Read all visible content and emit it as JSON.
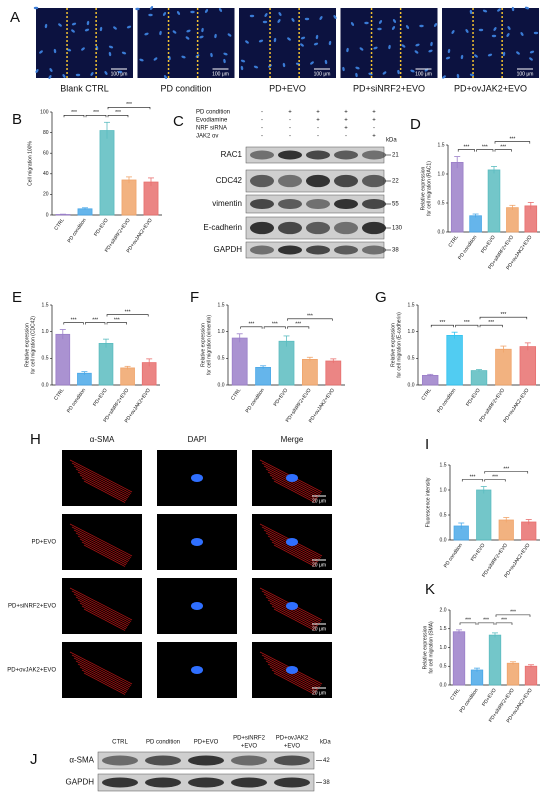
{
  "panel_a": {
    "panel": "A",
    "images": [
      {
        "label": "Blank CTRL",
        "scale_bar": "100 μm"
      },
      {
        "label": "PD condition",
        "scale_bar": "100 μm"
      },
      {
        "label": "PD+EVO",
        "scale_bar": "100 μm"
      },
      {
        "label": "PD+siNRF2+EVO",
        "scale_bar": "100 μm"
      },
      {
        "label": "PD+ovJAK2+EVO",
        "scale_bar": "100 μm"
      }
    ]
  },
  "panel_c": {
    "panel": "C",
    "unit": "kDa",
    "conditions": [
      {
        "name": "PD condition",
        "signs": [
          "-",
          "+",
          "+",
          "+",
          "+"
        ]
      },
      {
        "name": "Evodiamine",
        "signs": [
          "-",
          "-",
          "+",
          "+",
          "+"
        ]
      },
      {
        "name": "NRF siRNA",
        "signs": [
          "-",
          "-",
          "-",
          "+",
          "-"
        ]
      },
      {
        "name": "JAK2 ov",
        "signs": [
          "-",
          "-",
          "-",
          "-",
          "+"
        ]
      }
    ],
    "bands": [
      {
        "name": "RAC1",
        "kda": 21
      },
      {
        "name": "CDC42",
        "kda": 22
      },
      {
        "name": "vimentin",
        "kda": 55
      },
      {
        "name": "E-cadherin",
        "kda": 130
      },
      {
        "name": "GAPDH",
        "kda": 38
      }
    ]
  },
  "panel_h": {
    "panel": "H",
    "columns": [
      "α-SMA",
      "DAPI",
      "Merge"
    ],
    "rows": [
      {
        "scale_bar": "20 μm"
      },
      {
        "label": "PD+EVO",
        "scale_bar": "20 μm"
      },
      {
        "label": "PD+siNRF2+EVO",
        "scale_bar": "20 μm"
      },
      {
        "label": "PD+ovJAK2+EVO",
        "scale_bar": "20 μm"
      }
    ]
  },
  "panel_j": {
    "panel": "J",
    "unit": "kDa",
    "lanes": [
      [
        "CTRL"
      ],
      [
        "PD condition"
      ],
      [
        "PD+EVO"
      ],
      [
        "PD+siNRF2",
        "+EVO"
      ],
      [
        "PD+ovJAK2",
        "+EVO"
      ]
    ],
    "bands": [
      {
        "name": "α-SMA",
        "kda": 42
      },
      {
        "name": "GAPDH",
        "kda": 38
      }
    ]
  },
  "chart_data": [
    {
      "type": "bar",
      "panel": "B",
      "ylabel": [
        "Cell migration 100%"
      ],
      "categories": [
        "CTRL",
        "PD condition",
        "PD+EVO",
        "PD+siNRF2+EVO",
        "PD+ovJAK2+EVO"
      ],
      "values": [
        0.5,
        6,
        82,
        34,
        32
      ],
      "errors": [
        0.3,
        1,
        8,
        3,
        4
      ],
      "colors": [
        "#9b7fc9",
        "#4aa8e8",
        "#5bbcc0",
        "#f0a46a",
        "#e8706f"
      ],
      "ylim": [
        0,
        100
      ],
      "yticks": [
        0,
        20,
        40,
        60,
        80,
        100
      ],
      "significance": [
        {
          "between": [
            "CTRL",
            "PD condition"
          ],
          "label": "***"
        },
        {
          "between": [
            "PD condition",
            "PD+EVO"
          ],
          "label": "***"
        },
        {
          "between": [
            "PD+EVO",
            "PD+siNRF2+EVO"
          ],
          "label": "***"
        },
        {
          "between": [
            "PD+EVO",
            "PD+ovJAK2+EVO"
          ],
          "label": "***"
        }
      ]
    },
    {
      "type": "bar",
      "panel": "D",
      "ylabel": [
        "Relative expression",
        "for cell migration (RAC1)"
      ],
      "categories": [
        "CTRL",
        "PD condition",
        "PD+EVO",
        "PD+siNRF2+EVO",
        "PD+ovJAK2+EVO"
      ],
      "values": [
        1.2,
        0.28,
        1.07,
        0.42,
        0.45
      ],
      "errors": [
        0.1,
        0.03,
        0.06,
        0.04,
        0.06
      ],
      "colors": [
        "#9b7fc9",
        "#4aa8e8",
        "#5bbcc0",
        "#f0a46a",
        "#e8706f"
      ],
      "ylim": [
        0,
        1.5
      ],
      "yticks": [
        {
          "value": 0,
          "label": "0.0"
        },
        {
          "value": 0.5,
          "label": "0.5"
        },
        {
          "value": 1,
          "label": "1.0"
        },
        {
          "value": 1.5,
          "label": "1.5"
        }
      ],
      "significance": [
        {
          "between": [
            "CTRL",
            "PD condition"
          ],
          "label": "***"
        },
        {
          "between": [
            "PD condition",
            "PD+EVO"
          ],
          "label": "***"
        },
        {
          "between": [
            "PD+EVO",
            "PD+siNRF2+EVO"
          ],
          "label": "***"
        },
        {
          "between": [
            "PD+EVO",
            "PD+ovJAK2+EVO"
          ],
          "label": "***"
        }
      ]
    },
    {
      "type": "bar",
      "panel": "E",
      "ylabel": [
        "Relative expression",
        "for cell migration (CDC42)"
      ],
      "categories": [
        "CTRL",
        "PD condition",
        "PD+EVO",
        "PD+siNRF2+EVO",
        "PD+ovJAK2+EVO"
      ],
      "values": [
        0.95,
        0.22,
        0.78,
        0.32,
        0.42
      ],
      "errors": [
        0.09,
        0.03,
        0.08,
        0.03,
        0.07
      ],
      "colors": [
        "#9b7fc9",
        "#4aa8e8",
        "#5bbcc0",
        "#f0a46a",
        "#e8706f"
      ],
      "ylim": [
        0,
        1.5
      ],
      "yticks": [
        {
          "value": 0,
          "label": "0.0"
        },
        {
          "value": 0.5,
          "label": "0.5"
        },
        {
          "value": 1,
          "label": "1.0"
        },
        {
          "value": 1.5,
          "label": "1.5"
        }
      ],
      "significance": [
        {
          "between": [
            "CTRL",
            "PD condition"
          ],
          "label": "***"
        },
        {
          "between": [
            "PD condition",
            "PD+EVO"
          ],
          "label": "***"
        },
        {
          "between": [
            "PD+EVO",
            "PD+siNRF2+EVO"
          ],
          "label": "***"
        },
        {
          "between": [
            "PD+EVO",
            "PD+ovJAK2+EVO"
          ],
          "label": "***"
        }
      ]
    },
    {
      "type": "bar",
      "panel": "F",
      "ylabel": [
        "Relative expression",
        "for cell migration (vimentin)"
      ],
      "categories": [
        "CTRL",
        "PD condition",
        "PD+EVO",
        "PD+siNRF2+EVO",
        "PD+ovJAK2+EVO"
      ],
      "values": [
        0.88,
        0.33,
        0.82,
        0.48,
        0.45
      ],
      "errors": [
        0.08,
        0.03,
        0.1,
        0.04,
        0.04
      ],
      "colors": [
        "#9b7fc9",
        "#4aa8e8",
        "#5bbcc0",
        "#f0a46a",
        "#e8706f"
      ],
      "ylim": [
        0,
        1.5
      ],
      "yticks": [
        {
          "value": 0,
          "label": "0.0"
        },
        {
          "value": 0.5,
          "label": "0.5"
        },
        {
          "value": 1,
          "label": "1.0"
        },
        {
          "value": 1.5,
          "label": "1.5"
        }
      ],
      "significance": [
        {
          "between": [
            "CTRL",
            "PD condition"
          ],
          "label": "***"
        },
        {
          "between": [
            "PD condition",
            "PD+EVO"
          ],
          "label": "***"
        },
        {
          "between": [
            "PD+EVO",
            "PD+siNRF2+EVO"
          ],
          "label": "***"
        },
        {
          "between": [
            "PD+EVO",
            "PD+ovJAK2+EVO"
          ],
          "label": "***"
        }
      ]
    },
    {
      "type": "bar",
      "panel": "G",
      "ylabel": [
        "Relative expression",
        "for cell migration (E-cadherin)"
      ],
      "categories": [
        "CTRL",
        "PD condition",
        "PD+EVO",
        "PD+siNRF2+EVO",
        "PD+ovJAK2+EVO"
      ],
      "values": [
        0.18,
        0.93,
        0.27,
        0.67,
        0.72
      ],
      "errors": [
        0.02,
        0.06,
        0.02,
        0.06,
        0.07
      ],
      "colors": [
        "#9b7fc9",
        "#33c3f0",
        "#5bbcc0",
        "#f0a46a",
        "#e8706f"
      ],
      "ylim": [
        0,
        1.5
      ],
      "yticks": [
        {
          "value": 0,
          "label": "0.0"
        },
        {
          "value": 0.5,
          "label": "0.5"
        },
        {
          "value": 1,
          "label": "1.0"
        },
        {
          "value": 1.5,
          "label": "1.5"
        }
      ],
      "significance": [
        {
          "between": [
            "CTRL",
            "PD condition"
          ],
          "label": "***"
        },
        {
          "between": [
            "PD condition",
            "PD+EVO"
          ],
          "label": "***"
        },
        {
          "between": [
            "PD+EVO",
            "PD+siNRF2+EVO"
          ],
          "label": "***"
        },
        {
          "between": [
            "PD+EVO",
            "PD+ovJAK2+EVO"
          ],
          "label": "***"
        }
      ]
    },
    {
      "type": "bar",
      "panel": "I",
      "ylabel": [
        "Fluorescence intensity"
      ],
      "categories": [
        "PD condition",
        "PD+EVO",
        "PD+siNRF2+EVO",
        "PD+ovJAK2+EVO"
      ],
      "values": [
        0.28,
        1.0,
        0.4,
        0.36
      ],
      "errors": [
        0.06,
        0.07,
        0.05,
        0.05
      ],
      "colors": [
        "#4aa8e8",
        "#5bbcc0",
        "#f0a46a",
        "#e8706f"
      ],
      "ylim": [
        0,
        1.5
      ],
      "yticks": [
        {
          "value": 0,
          "label": "0.0"
        },
        {
          "value": 0.5,
          "label": "0.5"
        },
        {
          "value": 1,
          "label": "1.0"
        },
        {
          "value": 1.5,
          "label": "1.5"
        }
      ],
      "significance": [
        {
          "between": [
            "PD condition",
            "PD+EVO"
          ],
          "label": "***"
        },
        {
          "between": [
            "PD+EVO",
            "PD+siNRF2+EVO"
          ],
          "label": "***"
        },
        {
          "between": [
            "PD+EVO",
            "PD+ovJAK2+EVO"
          ],
          "label": "***"
        }
      ]
    },
    {
      "type": "bar",
      "panel": "K",
      "ylabel": [
        "Relative expression",
        "for cell migration (SMA)"
      ],
      "categories": [
        "CTRL",
        "PD condition",
        "PD+EVO",
        "PD+siNRF2+EVO",
        "PD+ovJAK2+EVO"
      ],
      "values": [
        1.42,
        0.4,
        1.33,
        0.58,
        0.5
      ],
      "errors": [
        0.05,
        0.05,
        0.06,
        0.04,
        0.04
      ],
      "colors": [
        "#9b7fc9",
        "#4aa8e8",
        "#5bbcc0",
        "#f0a46a",
        "#e8706f"
      ],
      "ylim": [
        0,
        2
      ],
      "yticks": [
        {
          "value": 0,
          "label": "0.0"
        },
        {
          "value": 0.5,
          "label": "0.5"
        },
        {
          "value": 1,
          "label": "1.0"
        },
        {
          "value": 1.5,
          "label": "1.5"
        },
        {
          "value": 2,
          "label": "2.0"
        }
      ],
      "significance": [
        {
          "between": [
            "CTRL",
            "PD condition"
          ],
          "label": "***"
        },
        {
          "between": [
            "PD condition",
            "PD+EVO"
          ],
          "label": "***"
        },
        {
          "between": [
            "PD+EVO",
            "PD+siNRF2+EVO"
          ],
          "label": "***"
        },
        {
          "between": [
            "PD+EVO",
            "PD+ovJAK2+EVO"
          ],
          "label": "***"
        }
      ]
    }
  ]
}
